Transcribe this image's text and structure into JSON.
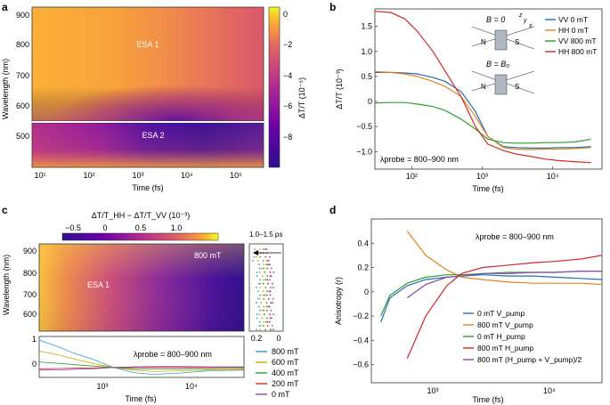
{
  "panels": {
    "a": {
      "letter": "a",
      "ylabel": "Wavelength (nm)",
      "xlabel": "Time (fs)",
      "region1": "ESA 1",
      "region2": "ESA 2",
      "yticks_top": [
        "900",
        "800",
        "700",
        "600"
      ],
      "yticks_bot": [
        "500"
      ],
      "xticks": [
        "10¹",
        "10²",
        "10³",
        "10⁴",
        "10⁵"
      ],
      "cbar_ticks": [
        "0",
        "−2",
        "−4",
        "−6",
        "−8"
      ],
      "cbar_label": "ΔT/T (10⁻⁵)"
    },
    "b": {
      "letter": "b",
      "ylabel": "ΔT/T (10⁻³)",
      "xlabel": "Time (fs)",
      "annotation": "λprobe = 800–900 nm",
      "inset_top": "B = 0",
      "inset_bot": "B = B₀",
      "axis_labels": [
        "z",
        "y",
        "x"
      ],
      "NS": [
        "N",
        "S"
      ]
    },
    "c": {
      "letter": "c",
      "cbar_label": "ΔT/T_HH − ΔT/T_VV (10⁻³)",
      "cbar_ticks": [
        "−0.5",
        "0",
        "0.5",
        "1.0"
      ],
      "field_label": "800 mT",
      "region": "ESA 1",
      "ylabel": "Wavelength (nm)",
      "yticks": [
        "900",
        "800",
        "700",
        "600"
      ],
      "lower_yticks": [
        "1",
        "0"
      ],
      "lower_annotation": "λprobe = 800–900 nm",
      "xticks": [
        "10³",
        "10⁴"
      ],
      "xlabel": "Time (fs)",
      "side_title": "1.0–1.5 ps",
      "side_xticks": [
        "0.2",
        "0"
      ]
    },
    "d": {
      "letter": "d",
      "ylabel": "Anisotropy (r)",
      "xlabel": "Time (fs)",
      "annotation": "λprobe = 800–900 nm",
      "yticks": [
        "0.4",
        "0.2",
        "0",
        "−0.2",
        "−0.4",
        "−0.6"
      ],
      "xticks": [
        "10³",
        "10⁴"
      ]
    }
  },
  "colors": {
    "blue": "#1f6fb2",
    "orange": "#e8821e",
    "green": "#2ca02c",
    "red": "#d62728",
    "purple": "#8e44ad",
    "cyan": "#2a9fd6",
    "amber": "#d9a600"
  },
  "chart_data": [
    {
      "panel": "a",
      "type": "heatmap",
      "title": "",
      "xlabel": "Time (fs)",
      "ylabel": "Wavelength (nm)",
      "xscale": "log",
      "xlim": [
        6,
        300000
      ],
      "ylim": [
        400,
        930
      ],
      "colorbar_range": [
        -9,
        0.5
      ],
      "colorbar_label": "ΔT/T (10⁻⁵)"
    },
    {
      "panel": "b",
      "type": "line",
      "xlabel": "Time (fs)",
      "ylabel": "ΔT/T (10⁻³)",
      "xscale": "log",
      "xlim": [
        30,
        50000
      ],
      "ylim": [
        -1.35,
        1.85
      ],
      "xticks": [
        100,
        1000,
        10000
      ],
      "xticklabels": [
        "10²",
        "10³",
        "10⁴"
      ],
      "yticks": [
        1.5,
        1.0,
        0.5,
        0,
        -0.5,
        -1.0
      ],
      "yticklabels": [
        "1.5",
        "1.0",
        "0.5",
        "0",
        "−0.5",
        "−1.0"
      ],
      "x": [
        30,
        50,
        80,
        120,
        200,
        300,
        500,
        800,
        1200,
        2000,
        3000,
        5000,
        8000,
        12000,
        20000,
        35000
      ],
      "series": [
        {
          "name": "VV 0 mT",
          "color": "#1f6fb2",
          "values": [
            0.58,
            0.58,
            0.57,
            0.55,
            0.48,
            0.4,
            0.2,
            -0.2,
            -0.7,
            -0.9,
            -0.92,
            -0.93,
            -0.93,
            -0.92,
            -0.92,
            -0.9
          ]
        },
        {
          "name": "HH 0 mT",
          "color": "#e8821e",
          "values": [
            0.6,
            0.58,
            0.55,
            0.5,
            0.4,
            0.3,
            0.1,
            -0.3,
            -0.7,
            -0.92,
            -0.95,
            -0.96,
            -0.95,
            -0.95,
            -0.94,
            -0.92
          ]
        },
        {
          "name": "VV 800 mT",
          "color": "#2ca02c",
          "values": [
            -0.03,
            -0.02,
            -0.02,
            -0.05,
            -0.1,
            -0.18,
            -0.35,
            -0.55,
            -0.75,
            -0.82,
            -0.83,
            -0.83,
            -0.82,
            -0.82,
            -0.81,
            -0.75
          ]
        },
        {
          "name": "HH 800 mT",
          "color": "#d62728",
          "values": [
            1.8,
            1.78,
            1.65,
            1.4,
            1.0,
            0.6,
            0.1,
            -0.5,
            -0.85,
            -0.98,
            -1.05,
            -1.1,
            -1.15,
            -1.18,
            -1.2,
            -1.22
          ]
        }
      ]
    },
    {
      "panel": "c",
      "type": "heatmap",
      "xlabel": "Time (fs)",
      "ylabel": "Wavelength (nm)",
      "xscale": "log",
      "colorbar_range": [
        -0.7,
        1.3
      ],
      "lower_plot": {
        "type": "line",
        "x": [
          250,
          400,
          600,
          900,
          1500,
          2500,
          4000,
          8000,
          15000,
          35000
        ],
        "series": [
          {
            "name": "800 mT",
            "color": "#2a9fd6",
            "values": [
              1.0,
              0.75,
              0.5,
              0.3,
              0.0,
              -0.2,
              -0.25,
              -0.2,
              -0.12,
              -0.1
            ]
          },
          {
            "name": "600 mT",
            "color": "#d9a600",
            "values": [
              0.6,
              0.45,
              0.3,
              0.15,
              0.0,
              -0.1,
              -0.15,
              -0.12,
              -0.1,
              -0.08
            ]
          },
          {
            "name": "400 mT",
            "color": "#2ca02c",
            "values": [
              0.2,
              0.15,
              0.1,
              0.05,
              0.0,
              -0.05,
              -0.06,
              -0.05,
              -0.05,
              -0.04
            ]
          },
          {
            "name": "200 mT",
            "color": "#d62728",
            "values": [
              -0.05,
              -0.04,
              -0.03,
              -0.02,
              0.0,
              0.0,
              0.0,
              0.0,
              0.0,
              0.0
            ]
          },
          {
            "name": "0 mT",
            "color": "#8e44ad",
            "values": [
              -0.1,
              -0.09,
              -0.07,
              -0.05,
              0.0,
              0.02,
              0.03,
              0.03,
              0.02,
              0.02
            ]
          }
        ]
      }
    },
    {
      "panel": "d",
      "type": "line",
      "xlabel": "Time (fs)",
      "ylabel": "Anisotropy (r)",
      "xscale": "log",
      "xlim": [
        350,
        30000
      ],
      "ylim": [
        -0.75,
        0.6
      ],
      "x": [
        420,
        500,
        700,
        1000,
        1500,
        2000,
        3000,
        5000,
        8000,
        12000,
        20000,
        30000
      ],
      "series": [
        {
          "name": "0 mT V_pump",
          "color": "#1f6fb2",
          "values": [
            -0.25,
            -0.05,
            0.05,
            0.1,
            0.12,
            0.13,
            0.14,
            0.13,
            0.13,
            0.12,
            0.11,
            0.1
          ]
        },
        {
          "name": "800 mT V_pump",
          "color": "#e8821e",
          "values": [
            null,
            null,
            0.5,
            0.3,
            0.18,
            0.12,
            0.1,
            0.08,
            0.07,
            0.07,
            0.07,
            0.06
          ]
        },
        {
          "name": "0 mT H_pump",
          "color": "#2ca02c",
          "values": [
            -0.2,
            -0.03,
            0.07,
            0.12,
            0.14,
            0.14,
            0.15,
            0.16,
            0.16,
            0.16,
            0.17,
            0.17
          ]
        },
        {
          "name": "800 mT H_pump",
          "color": "#d62728",
          "values": [
            null,
            null,
            -0.55,
            -0.2,
            0.05,
            0.15,
            0.2,
            0.22,
            0.24,
            0.25,
            0.27,
            0.3
          ]
        },
        {
          "name": "800 mT (H_pump + V_pump)/2",
          "color": "#8e44ad",
          "values": [
            null,
            null,
            -0.05,
            0.06,
            0.12,
            0.13,
            0.15,
            0.15,
            0.16,
            0.16,
            0.17,
            0.17
          ]
        }
      ]
    }
  ]
}
